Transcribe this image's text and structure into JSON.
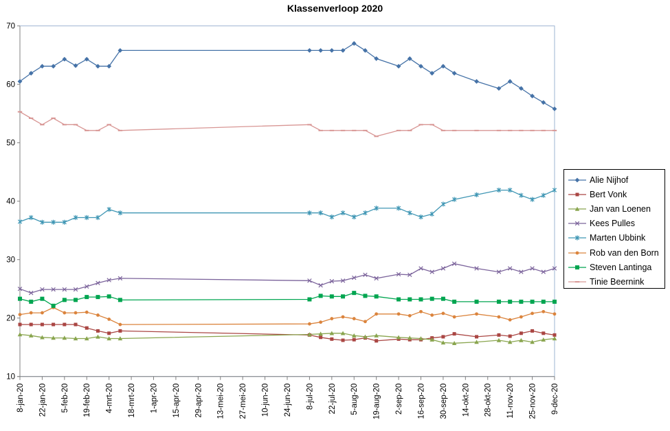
{
  "chart_data": {
    "type": "line",
    "title": "Klassenverloop 2020",
    "grid": "none",
    "legend_position": "right",
    "ylim": [
      10,
      70
    ],
    "y_ticks": [
      70,
      60,
      50,
      40,
      30,
      20,
      10
    ],
    "x_tick_interval_days": 14,
    "x_total_days": 336,
    "x_tick_labels": [
      "8-jan-20",
      "22-jan-20",
      "5-feb-20",
      "19-feb-20",
      "4-mrt-20",
      "18-mrt-20",
      "1-apr-20",
      "15-apr-20",
      "29-apr-20",
      "13-mei-20",
      "27-mei-20",
      "10-jun-20",
      "24-jun-20",
      "8-jul-20",
      "22-jul-20",
      "5-aug-20",
      "19-aug-20",
      "2-sep-20",
      "16-sep-20",
      "30-sep-20",
      "14-okt-20",
      "28-okt-20",
      "11-nov-20",
      "25-nov-20",
      "9-dec-20"
    ],
    "x_dates": [
      "8-jan",
      "15-jan",
      "22-jan",
      "29-jan",
      "5-feb",
      "12-feb",
      "19-feb",
      "26-feb",
      "4-mrt",
      "11-mrt",
      "8-jul",
      "15-jul",
      "22-jul",
      "29-jul",
      "5-aug",
      "12-aug",
      "19-aug",
      "2-sep",
      "9-sep",
      "16-sep",
      "23-sep",
      "30-sep",
      "7-okt",
      "21-okt",
      "4-nov",
      "11-nov",
      "18-nov",
      "25-nov",
      "2-dec",
      "9-dec"
    ],
    "x_days": [
      0,
      7,
      14,
      21,
      28,
      35,
      42,
      49,
      56,
      63,
      182,
      189,
      196,
      203,
      210,
      217,
      224,
      238,
      245,
      252,
      259,
      266,
      273,
      287,
      301,
      308,
      315,
      322,
      329,
      336
    ],
    "series": [
      {
        "name": "Alie Nijhof",
        "color": "#4572A7",
        "marker": "diamond",
        "values": [
          60.5,
          61.9,
          63.1,
          63.1,
          64.3,
          63.2,
          64.3,
          63.1,
          63.1,
          65.8,
          65.8,
          65.8,
          65.8,
          65.8,
          67.0,
          65.8,
          64.4,
          63.1,
          64.4,
          63.1,
          61.9,
          63.1,
          61.9,
          60.5,
          59.3,
          60.5,
          59.3,
          58.0,
          56.9,
          55.8
        ]
      },
      {
        "name": "Bert Vonk",
        "color": "#AA4643",
        "marker": "square",
        "values": [
          18.9,
          18.9,
          18.9,
          18.9,
          18.9,
          18.9,
          18.3,
          17.8,
          17.4,
          17.8,
          17.1,
          16.7,
          16.4,
          16.2,
          16.3,
          16.6,
          16.1,
          16.4,
          16.3,
          16.3,
          16.6,
          16.8,
          17.3,
          16.8,
          17.1,
          16.9,
          17.4,
          17.8,
          17.4,
          17.1
        ]
      },
      {
        "name": "Jan van Loenen",
        "color": "#89A54E",
        "marker": "triangle",
        "values": [
          17.2,
          17.0,
          16.7,
          16.6,
          16.6,
          16.5,
          16.5,
          16.8,
          16.5,
          16.5,
          17.2,
          17.3,
          17.4,
          17.4,
          17.0,
          16.8,
          17.0,
          16.7,
          16.6,
          16.5,
          16.3,
          15.8,
          15.7,
          15.9,
          16.2,
          15.9,
          16.2,
          15.9,
          16.3,
          16.5
        ]
      },
      {
        "name": "Kees Pulles",
        "color": "#7B639B",
        "marker": "x",
        "values": [
          25.0,
          24.3,
          24.9,
          24.9,
          24.9,
          24.9,
          25.4,
          26.0,
          26.5,
          26.8,
          26.4,
          25.6,
          26.3,
          26.4,
          26.9,
          27.4,
          26.8,
          27.5,
          27.4,
          28.5,
          27.9,
          28.5,
          29.3,
          28.5,
          27.9,
          28.5,
          27.9,
          28.5,
          27.9,
          28.5
        ]
      },
      {
        "name": "Marten Ubbink",
        "color": "#3F96B4",
        "marker": "asterisk",
        "values": [
          36.5,
          37.2,
          36.4,
          36.4,
          36.4,
          37.2,
          37.2,
          37.2,
          38.6,
          38.0,
          38.0,
          38.0,
          37.3,
          38.0,
          37.3,
          38.0,
          38.8,
          38.8,
          38.0,
          37.3,
          37.8,
          39.5,
          40.3,
          41.1,
          41.9,
          41.9,
          41.0,
          40.3,
          41.0,
          41.9
        ]
      },
      {
        "name": "Rob van den Born",
        "color": "#DB843D",
        "marker": "circle",
        "values": [
          20.6,
          20.9,
          20.9,
          21.8,
          20.9,
          20.9,
          21.0,
          20.5,
          19.8,
          18.9,
          19.0,
          19.3,
          19.9,
          20.2,
          19.9,
          19.4,
          20.7,
          20.7,
          20.4,
          21.1,
          20.5,
          20.8,
          20.2,
          20.7,
          20.2,
          19.7,
          20.2,
          20.8,
          21.1,
          20.7
        ]
      },
      {
        "name": "Steven Lantinga",
        "color": "#00A550",
        "marker": "filled-square",
        "values": [
          23.3,
          22.8,
          23.3,
          22.1,
          23.1,
          23.1,
          23.6,
          23.6,
          23.7,
          23.1,
          23.2,
          23.8,
          23.7,
          23.7,
          24.3,
          23.8,
          23.7,
          23.2,
          23.2,
          23.2,
          23.3,
          23.3,
          22.8,
          22.8,
          22.8,
          22.8,
          22.8,
          22.8,
          22.8,
          22.8
        ]
      },
      {
        "name": "Tinie Beernink",
        "color": "#D89694",
        "marker": "dash",
        "values": [
          55.3,
          54.2,
          53.1,
          54.2,
          53.1,
          53.1,
          52.1,
          52.1,
          53.1,
          52.1,
          53.1,
          52.1,
          52.1,
          52.1,
          52.1,
          52.1,
          51.1,
          52.1,
          52.1,
          53.1,
          53.1,
          52.1,
          52.1,
          52.1,
          52.1,
          52.1,
          52.1,
          52.1,
          52.1,
          52.1
        ]
      }
    ]
  }
}
